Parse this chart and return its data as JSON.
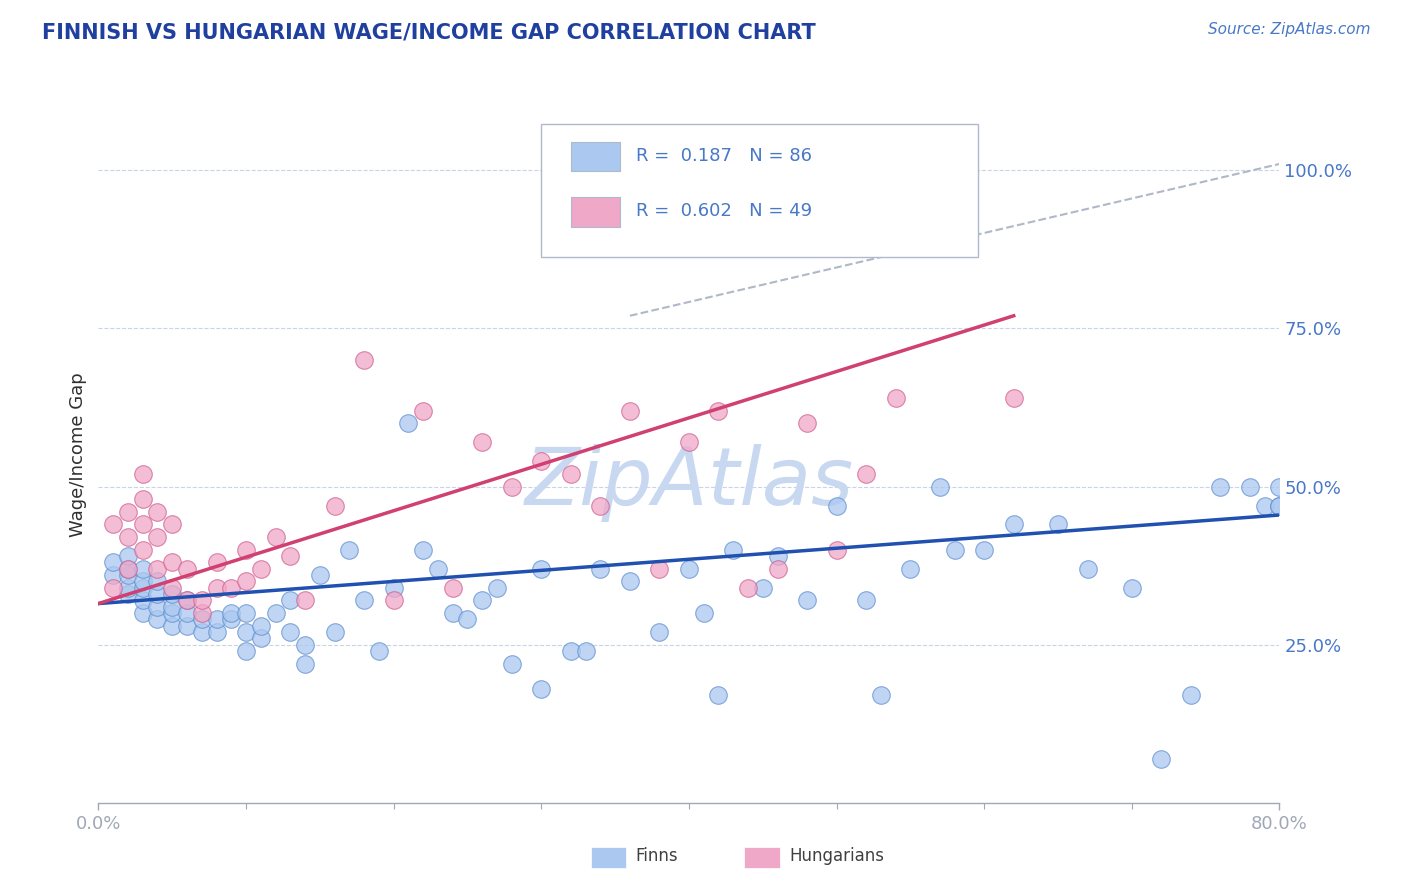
{
  "title": "FINNISH VS HUNGARIAN WAGE/INCOME GAP CORRELATION CHART",
  "source_text": "Source: ZipAtlas.com",
  "ylabel": "Wage/Income Gap",
  "x_min": 0.0,
  "x_max": 0.8,
  "y_min": 0.0,
  "y_max": 1.1,
  "x_ticks": [
    0.0,
    0.8
  ],
  "x_tick_labels": [
    "0.0%",
    "80.0%"
  ],
  "y_ticks": [
    0.25,
    0.5,
    0.75,
    1.0
  ],
  "y_tick_labels": [
    "25.0%",
    "50.0%",
    "75.0%",
    "100.0%"
  ],
  "finns_color": "#aac8f0",
  "hungarians_color": "#f0a8c8",
  "finns_edge_color": "#6090d0",
  "hungarians_edge_color": "#d06090",
  "finns_trend_color": "#2050b0",
  "hungarians_trend_color": "#d04070",
  "dashed_line_color": "#b0b8c8",
  "background_color": "#ffffff",
  "grid_color": "#c8d4e8",
  "watermark_color": "#c8d8f0",
  "legend_box_color": "#e8edf5",
  "legend_border_color": "#b0b8cc",
  "tick_color": "#4878c8",
  "title_color": "#2040a0",
  "source_color": "#4878c8",
  "ylabel_color": "#303030",
  "finns_scatter_x": [
    0.01,
    0.01,
    0.02,
    0.02,
    0.02,
    0.02,
    0.02,
    0.03,
    0.03,
    0.03,
    0.03,
    0.03,
    0.04,
    0.04,
    0.04,
    0.04,
    0.05,
    0.05,
    0.05,
    0.05,
    0.06,
    0.06,
    0.06,
    0.07,
    0.07,
    0.08,
    0.08,
    0.09,
    0.09,
    0.1,
    0.1,
    0.1,
    0.11,
    0.11,
    0.12,
    0.13,
    0.13,
    0.14,
    0.14,
    0.15,
    0.16,
    0.17,
    0.18,
    0.19,
    0.2,
    0.21,
    0.22,
    0.23,
    0.24,
    0.25,
    0.26,
    0.27,
    0.28,
    0.3,
    0.3,
    0.32,
    0.33,
    0.34,
    0.36,
    0.38,
    0.4,
    0.41,
    0.42,
    0.43,
    0.45,
    0.46,
    0.48,
    0.5,
    0.52,
    0.53,
    0.55,
    0.57,
    0.58,
    0.6,
    0.62,
    0.65,
    0.67,
    0.7,
    0.72,
    0.74,
    0.76,
    0.78,
    0.79,
    0.8,
    0.8,
    0.8
  ],
  "finns_scatter_y": [
    0.36,
    0.38,
    0.33,
    0.34,
    0.36,
    0.37,
    0.39,
    0.3,
    0.32,
    0.34,
    0.35,
    0.37,
    0.29,
    0.31,
    0.33,
    0.35,
    0.28,
    0.3,
    0.31,
    0.33,
    0.28,
    0.3,
    0.32,
    0.27,
    0.29,
    0.27,
    0.29,
    0.29,
    0.3,
    0.24,
    0.27,
    0.3,
    0.26,
    0.28,
    0.3,
    0.27,
    0.32,
    0.22,
    0.25,
    0.36,
    0.27,
    0.4,
    0.32,
    0.24,
    0.34,
    0.6,
    0.4,
    0.37,
    0.3,
    0.29,
    0.32,
    0.34,
    0.22,
    0.37,
    0.18,
    0.24,
    0.24,
    0.37,
    0.35,
    0.27,
    0.37,
    0.3,
    0.17,
    0.4,
    0.34,
    0.39,
    0.32,
    0.47,
    0.32,
    0.17,
    0.37,
    0.5,
    0.4,
    0.4,
    0.44,
    0.44,
    0.37,
    0.34,
    0.07,
    0.17,
    0.5,
    0.5,
    0.47,
    0.5,
    0.47,
    0.47
  ],
  "hungarians_scatter_x": [
    0.01,
    0.01,
    0.02,
    0.02,
    0.02,
    0.03,
    0.03,
    0.03,
    0.03,
    0.04,
    0.04,
    0.04,
    0.05,
    0.05,
    0.05,
    0.06,
    0.06,
    0.07,
    0.07,
    0.08,
    0.08,
    0.09,
    0.1,
    0.1,
    0.11,
    0.12,
    0.13,
    0.14,
    0.16,
    0.18,
    0.2,
    0.22,
    0.24,
    0.26,
    0.28,
    0.3,
    0.32,
    0.34,
    0.36,
    0.38,
    0.4,
    0.42,
    0.44,
    0.46,
    0.48,
    0.5,
    0.52,
    0.54,
    0.62
  ],
  "hungarians_scatter_y": [
    0.34,
    0.44,
    0.37,
    0.42,
    0.46,
    0.4,
    0.44,
    0.48,
    0.52,
    0.37,
    0.42,
    0.46,
    0.34,
    0.38,
    0.44,
    0.32,
    0.37,
    0.3,
    0.32,
    0.34,
    0.38,
    0.34,
    0.35,
    0.4,
    0.37,
    0.42,
    0.39,
    0.32,
    0.47,
    0.7,
    0.32,
    0.62,
    0.34,
    0.57,
    0.5,
    0.54,
    0.52,
    0.47,
    0.62,
    0.37,
    0.57,
    0.62,
    0.34,
    0.37,
    0.6,
    0.4,
    0.52,
    0.64,
    0.64
  ],
  "finns_trend_x": [
    0.0,
    0.8
  ],
  "finns_trend_y": [
    0.315,
    0.455
  ],
  "hungarians_trend_x": [
    0.0,
    0.62
  ],
  "hungarians_trend_y": [
    0.315,
    0.77
  ],
  "dashed_line_x": [
    0.36,
    0.8
  ],
  "dashed_line_y": [
    0.77,
    1.01
  ]
}
